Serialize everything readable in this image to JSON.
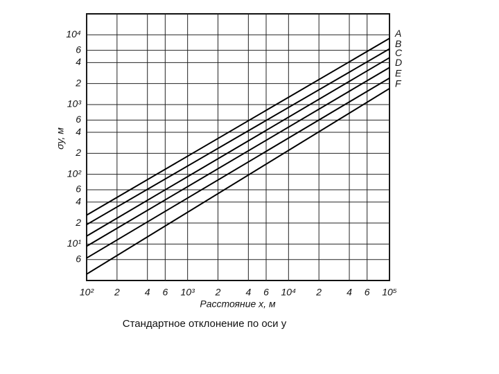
{
  "chart_data": {
    "type": "line",
    "xlabel": "Расстояние x, м",
    "ylabel": "σy, м",
    "caption": "Стандартное отклонение по оси y",
    "x": [
      100,
      100000
    ],
    "series": [
      {
        "name": "A",
        "color": "#000000",
        "values": [
          26,
          8900
        ]
      },
      {
        "name": "B",
        "color": "#000000",
        "values": [
          19,
          6300
        ]
      },
      {
        "name": "C",
        "color": "#000000",
        "values": [
          13,
          4700
        ]
      },
      {
        "name": "D",
        "color": "#000000",
        "values": [
          9.3,
          3400
        ]
      },
      {
        "name": "E",
        "color": "#000000",
        "values": [
          6.3,
          2400
        ]
      },
      {
        "name": "F",
        "color": "#000000",
        "values": [
          3.7,
          1700
        ]
      }
    ],
    "xscale": "log",
    "yscale": "log",
    "xlim": [
      100,
      100000
    ],
    "ylim": [
      3,
      20000
    ],
    "xticks": [
      {
        "value": 100,
        "label": "10²"
      },
      {
        "value": 200,
        "label": "2"
      },
      {
        "value": 400,
        "label": "4"
      },
      {
        "value": 600,
        "label": "6"
      },
      {
        "value": 1000,
        "label": "10³"
      },
      {
        "value": 2000,
        "label": "2"
      },
      {
        "value": 4000,
        "label": "4"
      },
      {
        "value": 6000,
        "label": "6"
      },
      {
        "value": 10000,
        "label": "10⁴"
      },
      {
        "value": 20000,
        "label": "2"
      },
      {
        "value": 40000,
        "label": "4"
      },
      {
        "value": 60000,
        "label": "6"
      },
      {
        "value": 100000,
        "label": "10⁵"
      }
    ],
    "yticks": [
      6,
      {
        "value": 10,
        "label": "10¹"
      },
      {
        "value": 20,
        "label": "2"
      },
      {
        "value": 40,
        "label": "4"
      },
      {
        "value": 60,
        "label": "6"
      },
      {
        "value": 100,
        "label": "10²"
      },
      {
        "value": 200,
        "label": "2"
      },
      {
        "value": 400,
        "label": "4"
      },
      {
        "value": 600,
        "label": "6"
      },
      {
        "value": 1000,
        "label": "10³"
      },
      {
        "value": 2000,
        "label": "2"
      },
      {
        "value": 4000,
        "label": "4"
      },
      {
        "value": 6000,
        "label": "6"
      },
      {
        "value": 10000,
        "label": "10⁴"
      }
    ],
    "grid": true
  }
}
